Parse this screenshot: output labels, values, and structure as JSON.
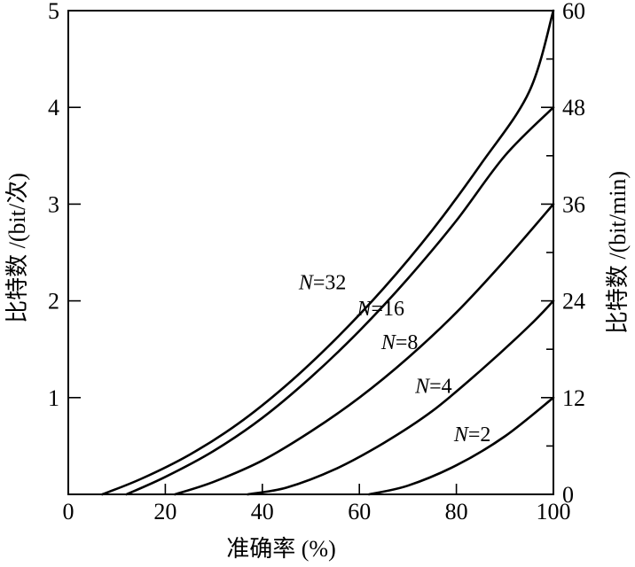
{
  "chart_data": {
    "type": "line",
    "xlabel": "准确率 (%)",
    "ylabel": "比特数 /(bit/次)",
    "y2label": "比特数 /(bit/min)",
    "xlim": [
      0,
      100
    ],
    "ylim": [
      0,
      5
    ],
    "y2lim": [
      0,
      60
    ],
    "x_ticks": [
      0,
      20,
      40,
      60,
      80,
      100
    ],
    "y_ticks": [
      1,
      2,
      3,
      4,
      5
    ],
    "y2_ticks": [
      0,
      12,
      24,
      36,
      48,
      60
    ],
    "grid": false,
    "legend": "none",
    "series": [
      {
        "name": "N=32",
        "label_parts": [
          "N",
          "=32"
        ],
        "x": [
          7,
          15,
          25,
          35,
          45,
          55,
          65,
          75,
          85,
          95,
          100
        ],
        "y": [
          0.0,
          0.16,
          0.41,
          0.73,
          1.13,
          1.6,
          2.13,
          2.73,
          3.41,
          4.16,
          5.0
        ]
      },
      {
        "name": "N=16",
        "label_parts": [
          "N",
          "=16"
        ],
        "x": [
          12,
          20,
          30,
          40,
          50,
          60,
          70,
          80,
          90,
          100
        ],
        "y": [
          0.0,
          0.18,
          0.45,
          0.79,
          1.21,
          1.69,
          2.23,
          2.83,
          3.5,
          4.0
        ],
        "last": 4.0
      },
      {
        "name": "N=8",
        "label_parts": [
          "N",
          "=8"
        ],
        "x": [
          22,
          30,
          40,
          50,
          60,
          70,
          80,
          90,
          100
        ],
        "y": [
          0.0,
          0.13,
          0.35,
          0.65,
          1.0,
          1.41,
          1.88,
          2.42,
          3.0
        ]
      },
      {
        "name": "N=4",
        "label_parts": [
          "N",
          "=4"
        ],
        "x": [
          37,
          45,
          55,
          65,
          75,
          85,
          95,
          100
        ],
        "y": [
          0.0,
          0.07,
          0.26,
          0.53,
          0.86,
          1.28,
          1.74,
          2.0
        ]
      },
      {
        "name": "N=2",
        "label_parts": [
          "N",
          "=2"
        ],
        "x": [
          62,
          70,
          80,
          90,
          100
        ],
        "y": [
          0.0,
          0.09,
          0.3,
          0.6,
          1.0
        ]
      }
    ],
    "label_anchor": [
      {
        "x": 47.5,
        "y": 2.12
      },
      {
        "x": 59.5,
        "y": 1.85
      },
      {
        "x": 64.5,
        "y": 1.5
      },
      {
        "x": 71.5,
        "y": 1.05
      },
      {
        "x": 79.5,
        "y": 0.55
      }
    ]
  }
}
